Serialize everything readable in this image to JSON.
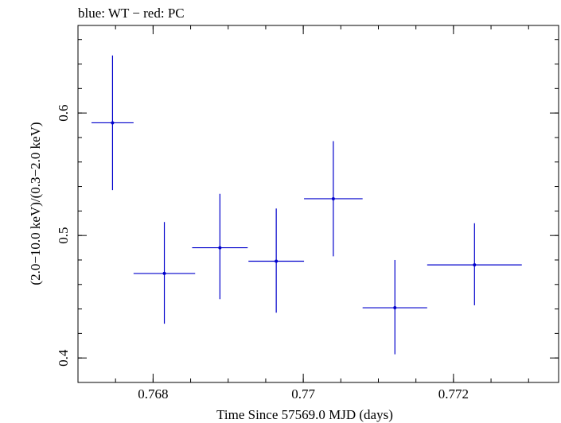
{
  "chart_data": {
    "type": "scatter",
    "title": "blue: WT − red: PC",
    "xlabel": "Time Since 57569.0 MJD (days)",
    "ylabel": "(2.0−10.0 keV)/(0.3−2.0 keV)",
    "xlim": [
      0.767,
      0.7734
    ],
    "ylim": [
      0.38,
      0.6715
    ],
    "xticks": [
      {
        "value": 0.768,
        "label": "0.768"
      },
      {
        "value": 0.77,
        "label": "0.77"
      },
      {
        "value": 0.772,
        "label": "0.772"
      }
    ],
    "x_minor_step": 0.0005,
    "yticks": [
      {
        "value": 0.4,
        "label": "0.4"
      },
      {
        "value": 0.5,
        "label": "0.5"
      },
      {
        "value": 0.6,
        "label": "0.6"
      }
    ],
    "y_minor_step": 0.02,
    "grid": false,
    "series": [
      {
        "color": "#0000cc",
        "points": [
          {
            "x": 0.76746,
            "y": 0.592,
            "xerr": 0.00028,
            "yerr_low": 0.055,
            "yerr_high": 0.055
          },
          {
            "x": 0.76815,
            "y": 0.469,
            "xerr": 0.00041,
            "yerr_low": 0.041,
            "yerr_high": 0.042
          },
          {
            "x": 0.76889,
            "y": 0.49,
            "xerr": 0.00037,
            "yerr_low": 0.042,
            "yerr_high": 0.044
          },
          {
            "x": 0.76964,
            "y": 0.479,
            "xerr": 0.00037,
            "yerr_low": 0.042,
            "yerr_high": 0.043
          },
          {
            "x": 0.7704,
            "y": 0.53,
            "xerr": 0.00039,
            "yerr_low": 0.047,
            "yerr_high": 0.047
          },
          {
            "x": 0.77122,
            "y": 0.441,
            "xerr": 0.00043,
            "yerr_low": 0.038,
            "yerr_high": 0.039
          },
          {
            "x": 0.77228,
            "y": 0.476,
            "xerr": 0.00063,
            "yerr_low": 0.033,
            "yerr_high": 0.034
          }
        ]
      }
    ]
  }
}
